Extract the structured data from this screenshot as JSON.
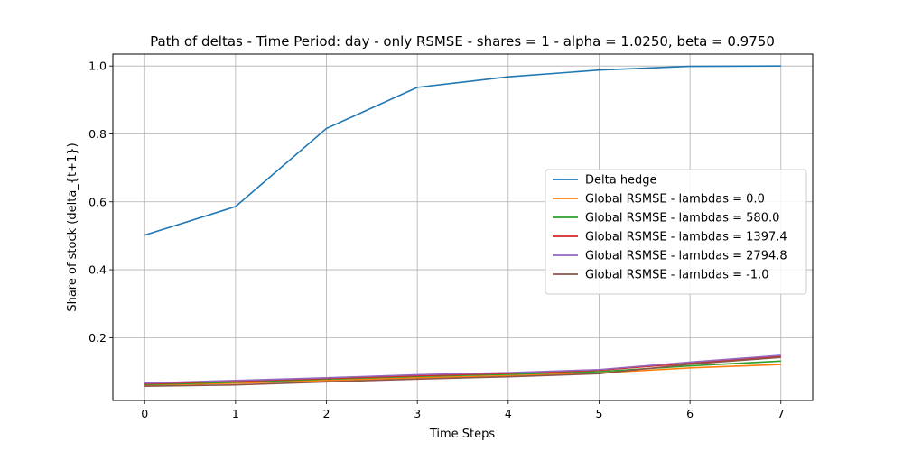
{
  "chart_data": {
    "type": "line",
    "title": "Path of deltas - Time Period: day - only RSMSE - shares = 1 - alpha = 1.0250, beta = 0.9750",
    "xlabel": "Time Steps",
    "ylabel": "Share of stock (delta_{t+1})",
    "x": [
      0,
      1,
      2,
      3,
      4,
      5,
      6,
      7
    ],
    "xlim": [
      -0.35,
      7.35
    ],
    "ylim": [
      0.015,
      1.035
    ],
    "xticks": [
      0,
      1,
      2,
      3,
      4,
      5,
      6,
      7
    ],
    "yticks": [
      0.2,
      0.4,
      0.6,
      0.8,
      1.0
    ],
    "ytick_labels": [
      "0.2",
      "0.4",
      "0.6",
      "0.8",
      "1.0"
    ],
    "grid": true,
    "legend_position": "center-right",
    "series": [
      {
        "name": "Delta hedge",
        "color": "#1f77b4",
        "values": [
          0.502,
          0.586,
          0.816,
          0.937,
          0.968,
          0.988,
          0.999,
          1.0
        ]
      },
      {
        "name": "Global RSMSE - lambdas = 0.0",
        "color": "#ff7f0e",
        "values": [
          0.06,
          0.066,
          0.074,
          0.082,
          0.088,
          0.096,
          0.111,
          0.121
        ]
      },
      {
        "name": "Global RSMSE - lambdas = 580.0",
        "color": "#2ca02c",
        "values": [
          0.062,
          0.069,
          0.078,
          0.086,
          0.092,
          0.1,
          0.117,
          0.131
        ]
      },
      {
        "name": "Global RSMSE - lambdas = 1397.4",
        "color": "#d62728",
        "values": [
          0.064,
          0.072,
          0.08,
          0.088,
          0.095,
          0.104,
          0.125,
          0.145
        ]
      },
      {
        "name": "Global RSMSE - lambdas = 2794.8",
        "color": "#9467bd",
        "values": [
          0.066,
          0.074,
          0.082,
          0.091,
          0.097,
          0.106,
          0.128,
          0.148
        ]
      },
      {
        "name": "Global RSMSE - lambdas = -1.0",
        "color": "#8c564b",
        "values": [
          0.057,
          0.061,
          0.07,
          0.078,
          0.085,
          0.094,
          0.122,
          0.142
        ]
      }
    ]
  }
}
